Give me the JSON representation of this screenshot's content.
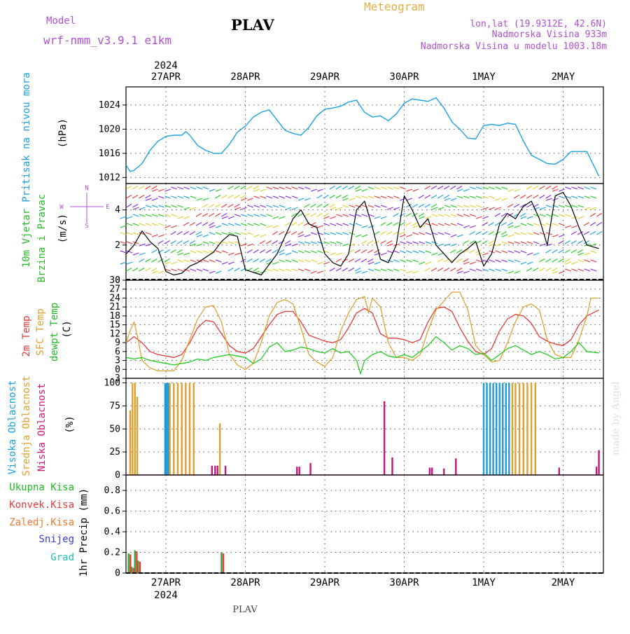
{
  "header": {
    "model_label": "Model",
    "model_value": "wrf-nmm_v3.9.1 e1km",
    "station": "PLAV",
    "product": "Meteogram",
    "coords": "lon,lat (19.9312E, 42.6N)",
    "altitude": "Nadmorska Visina 933m",
    "model_altitude": "Nadmorska Visina u modelu 1003.18m",
    "top_year": "2024",
    "bottom_year": "2024",
    "footer_station": "PLAV",
    "watermark": "made by Angel"
  },
  "colors": {
    "pressure": "#1ba1e2",
    "wind_black": "#000000",
    "t2m": "#e83a3a",
    "sfc": "#e0a030",
    "dew": "#22cc22",
    "high_cloud": "#1e9bd7",
    "mid_cloud": "#e0a030",
    "low_cloud": "#c0187a",
    "total_precip": "#33aa33",
    "conv_precip": "#e83a3a"
  },
  "chart_data": [
    {
      "type": "line",
      "id": "pressure",
      "ylabel": [
        "Pritisak na nivou mora",
        "(hPa)"
      ],
      "ylim": [
        1011,
        1027
      ],
      "yticks": [
        1012,
        1016,
        1020,
        1024
      ],
      "x_day_offset_start": -0.5,
      "x_labels": [
        "27APR",
        "28APR",
        "29APR",
        "30APR",
        "1MAY",
        "2MAY"
      ],
      "grid": true,
      "series": [
        {
          "x": [
            -0.5,
            -0.45,
            -0.4,
            -0.3,
            -0.2,
            -0.1,
            0.0,
            0.1,
            0.2,
            0.2,
            0.25,
            0.3,
            0.4,
            0.5,
            0.6,
            0.7,
            0.8,
            0.9,
            1.0,
            1.1,
            1.2,
            1.3,
            1.4,
            1.5,
            1.6,
            1.7,
            1.8,
            1.9,
            2.0,
            2.1,
            2.2,
            2.3,
            2.4,
            2.5,
            2.6,
            2.7,
            2.8,
            2.9,
            3.0,
            3.1,
            3.2,
            3.3,
            3.4,
            3.5,
            3.6,
            3.7,
            3.8,
            3.9,
            4.0,
            4.1,
            4.2,
            4.3,
            4.4,
            4.5,
            4.6,
            4.7,
            4.8,
            4.9,
            5.0,
            5.1,
            5.2,
            5.3,
            5.45
          ],
          "y": [
            1014,
            1013,
            1013.2,
            1014.3,
            1016.5,
            1018,
            1018.8,
            1019,
            1019,
            1019,
            1019.6,
            1019,
            1017.3,
            1016.5,
            1016,
            1016,
            1017.5,
            1019.5,
            1020.5,
            1022,
            1022.8,
            1023.2,
            1021.5,
            1019.8,
            1019.3,
            1019,
            1020.3,
            1022.2,
            1023.3,
            1023.5,
            1023.8,
            1024.5,
            1024.8,
            1022.8,
            1022,
            1022.2,
            1021.4,
            1022.5,
            1024.3,
            1025,
            1024.8,
            1024.6,
            1025.2,
            1023.5,
            1021.2,
            1020,
            1018.5,
            1018.4,
            1020.6,
            1020.8,
            1020.6,
            1021,
            1020.8,
            1018,
            1015.7,
            1015,
            1014.3,
            1014.2,
            1015,
            1016.3,
            1016.3,
            1016.3,
            1012.2
          ]
        }
      ]
    },
    {
      "type": "line",
      "id": "wind",
      "ylabel": [
        "10m Vjetar",
        "Brzina i Pravac",
        "(m/s)"
      ],
      "ylim": [
        0,
        5.5
      ],
      "yticks": [
        0,
        2,
        4
      ],
      "compass": [
        "N",
        "W",
        "E",
        "S"
      ],
      "grid": true,
      "series": [
        {
          "name": "speed",
          "x": [
            -0.5,
            -0.4,
            -0.3,
            -0.2,
            -0.1,
            0.0,
            0.1,
            0.2,
            0.3,
            0.4,
            0.5,
            0.6,
            0.7,
            0.8,
            0.9,
            1.0,
            1.2,
            1.4,
            1.5,
            1.6,
            1.7,
            1.8,
            1.9,
            2.0,
            2.1,
            2.2,
            2.3,
            2.4,
            2.5,
            2.6,
            2.7,
            2.8,
            2.9,
            3.0,
            3.1,
            3.2,
            3.3,
            3.4,
            3.5,
            3.6,
            3.7,
            3.8,
            3.9,
            4.0,
            4.1,
            4.2,
            4.3,
            4.4,
            4.5,
            4.6,
            4.7,
            4.8,
            4.9,
            5.0,
            5.1,
            5.2,
            5.3,
            5.45
          ],
          "y": [
            1.5,
            2.0,
            2.8,
            2.2,
            1.8,
            0.5,
            0.3,
            0.4,
            0.8,
            1.0,
            1.3,
            1.6,
            2.2,
            2.6,
            2.5,
            0.6,
            0.3,
            1.5,
            2.5,
            3.5,
            4.0,
            3.2,
            3.0,
            1.5,
            1.0,
            0.8,
            1.5,
            4.0,
            4.5,
            3.0,
            1.2,
            1.0,
            2.0,
            4.8,
            4.0,
            3.0,
            3.5,
            2.0,
            1.5,
            1.0,
            1.5,
            1.8,
            2.2,
            0.8,
            1.5,
            3.2,
            3.8,
            3.5,
            4.2,
            4.5,
            3.5,
            2.0,
            4.8,
            5.0,
            4.2,
            3.0,
            2.0,
            1.8
          ]
        }
      ]
    },
    {
      "type": "line",
      "id": "temperature",
      "ylabel": [
        "2m Temp",
        "SFC Temp",
        "dewpt Temp",
        "(C)"
      ],
      "ylim": [
        -3,
        30
      ],
      "yticks": [
        -3,
        0,
        3,
        6,
        9,
        12,
        15,
        18,
        21,
        24,
        27,
        30
      ],
      "grid": true,
      "series": [
        {
          "name": "2m Temp",
          "x": [
            -0.5,
            -0.4,
            -0.3,
            -0.2,
            -0.1,
            0.0,
            0.1,
            0.2,
            0.3,
            0.4,
            0.5,
            0.6,
            0.7,
            0.8,
            0.9,
            1.0,
            1.1,
            1.2,
            1.3,
            1.4,
            1.5,
            1.6,
            1.7,
            1.8,
            1.9,
            2.0,
            2.1,
            2.2,
            2.3,
            2.4,
            2.5,
            2.6,
            2.7,
            2.8,
            2.9,
            3.0,
            3.1,
            3.2,
            3.3,
            3.4,
            3.5,
            3.6,
            3.7,
            3.8,
            3.9,
            4.0,
            4.1,
            4.2,
            4.3,
            4.4,
            4.5,
            4.6,
            4.7,
            4.8,
            4.9,
            5.0,
            5.1,
            5.2,
            5.3,
            5.45
          ],
          "y": [
            9,
            11,
            9,
            6,
            5,
            4.5,
            4,
            5,
            9,
            14,
            16.5,
            16,
            12,
            8,
            6,
            5.5,
            7,
            11,
            15,
            18.5,
            19.5,
            19.5,
            16,
            11.5,
            10.5,
            9.5,
            9,
            10,
            14,
            19,
            20.5,
            19,
            12,
            10.5,
            10.5,
            10,
            9,
            10,
            16,
            20.5,
            21,
            19.5,
            14,
            9.5,
            6,
            5,
            7,
            13,
            17,
            18.5,
            18,
            15.5,
            11,
            9.5,
            8.5,
            8,
            10,
            15,
            18,
            20
          ]
        },
        {
          "name": "SFC Temp",
          "x": [
            -0.5,
            -0.45,
            -0.4,
            -0.35,
            -0.3,
            -0.2,
            -0.1,
            0.0,
            0.1,
            0.2,
            0.3,
            0.4,
            0.5,
            0.6,
            0.7,
            0.8,
            0.9,
            1.0,
            1.1,
            1.2,
            1.3,
            1.4,
            1.5,
            1.6,
            1.7,
            1.8,
            1.9,
            2.0,
            2.1,
            2.2,
            2.3,
            2.4,
            2.5,
            2.55,
            2.6,
            2.7,
            2.8,
            2.9,
            3.0,
            3.1,
            3.2,
            3.3,
            3.4,
            3.5,
            3.6,
            3.7,
            3.8,
            3.9,
            4.0,
            4.1,
            4.2,
            4.3,
            4.4,
            4.5,
            4.6,
            4.7,
            4.8,
            4.9,
            5.0,
            5.1,
            5.2,
            5.3,
            5.35,
            5.45
          ],
          "y": [
            9,
            13,
            16,
            10,
            3,
            0.5,
            -0.5,
            -0.5,
            -0.5,
            3,
            10,
            17,
            21,
            21.5,
            16,
            5,
            1.5,
            0,
            2,
            9,
            18,
            22.5,
            23.5,
            22,
            14,
            5,
            2.5,
            1,
            4,
            13,
            19,
            23.5,
            24.5,
            19,
            24,
            21,
            9,
            4,
            4,
            3,
            5,
            13,
            20,
            23,
            26,
            26,
            20,
            8,
            5,
            2.5,
            3,
            9,
            16,
            21,
            22,
            20,
            10,
            5,
            4,
            4,
            10,
            18,
            24,
            24
          ]
        },
        {
          "name": "dewpt Temp",
          "x": [
            -0.5,
            -0.4,
            -0.3,
            -0.2,
            -0.1,
            0.0,
            0.1,
            0.2,
            0.3,
            0.4,
            0.5,
            0.6,
            0.7,
            0.8,
            0.9,
            1.0,
            1.1,
            1.2,
            1.3,
            1.4,
            1.5,
            1.6,
            1.7,
            1.8,
            1.9,
            2.0,
            2.1,
            2.2,
            2.3,
            2.4,
            2.45,
            2.5,
            2.6,
            2.7,
            2.8,
            2.9,
            3.0,
            3.1,
            3.2,
            3.3,
            3.4,
            3.5,
            3.6,
            3.7,
            3.8,
            3.9,
            4.0,
            4.1,
            4.2,
            4.3,
            4.4,
            4.5,
            4.6,
            4.7,
            4.8,
            4.9,
            5.0,
            5.1,
            5.2,
            5.3,
            5.45
          ],
          "y": [
            4,
            3.5,
            4,
            3,
            2.5,
            2,
            1.5,
            2,
            2.5,
            3.5,
            3,
            4,
            4.5,
            5,
            4.5,
            4,
            2,
            3.5,
            7.5,
            9,
            6,
            6.5,
            7.5,
            7,
            6,
            5.5,
            7,
            5.5,
            6,
            3,
            -1.5,
            3,
            5,
            6,
            4.5,
            4,
            5,
            4,
            6,
            8,
            11,
            9,
            6.5,
            8,
            7,
            5,
            5.5,
            3,
            5,
            7,
            8,
            6.5,
            5,
            6,
            5,
            3.5,
            4,
            6,
            9,
            6,
            5.5
          ]
        }
      ]
    },
    {
      "type": "bar",
      "id": "clouds",
      "ylabel": [
        "Visoka Oblacnost",
        "Srednja Oblacnost",
        "Niska Oblacnost",
        "(%)"
      ],
      "ylim": [
        0,
        105
      ],
      "yticks": [
        0,
        25,
        50,
        75,
        100
      ],
      "grid": true,
      "series": [
        {
          "name": "Visoka Oblacnost",
          "x": [
            -0.01,
            0.01,
            0.03,
            4.0,
            4.04,
            4.08,
            4.12,
            4.16,
            4.2,
            4.24,
            4.28,
            4.32
          ],
          "values": [
            100,
            100,
            100,
            100,
            100,
            100,
            100,
            100,
            100,
            100,
            100,
            100
          ]
        },
        {
          "name": "Srednja Oblacnost",
          "x": [
            -0.45,
            -0.42,
            -0.39,
            -0.36,
            0.05,
            0.1,
            0.15,
            0.2,
            0.25,
            0.3,
            0.35,
            0.68,
            4.36,
            4.4,
            4.45,
            4.5,
            4.55,
            4.6,
            4.65
          ],
          "values": [
            70,
            100,
            100,
            85,
            100,
            100,
            100,
            100,
            100,
            100,
            100,
            56,
            100,
            100,
            100,
            100,
            100,
            100,
            100
          ]
        },
        {
          "name": "Niska Oblacnost",
          "x": [
            0.58,
            0.62,
            0.65,
            0.75,
            1.65,
            1.68,
            1.82,
            2.75,
            2.85,
            3.32,
            3.35,
            3.5,
            3.65,
            4.95,
            5.42,
            5.45
          ],
          "values": [
            10,
            10,
            10,
            10,
            9,
            9,
            13,
            80,
            19,
            8,
            8,
            7,
            18,
            8,
            9,
            27
          ]
        }
      ]
    },
    {
      "type": "bar",
      "id": "precip",
      "ylabel": [
        "1hr Precip (mm)"
      ],
      "legend": [
        "Ukupna Kisa",
        "Konvek.Kisa",
        "Zaledj.Kisa",
        "Snijeg",
        "Grad"
      ],
      "ylim": [
        0,
        0.95
      ],
      "yticks": [
        0,
        0.2,
        0.4,
        0.6,
        0.8
      ],
      "grid": true,
      "series": [
        {
          "name": "Ukupna Kisa",
          "x": [
            -0.47,
            -0.43,
            -0.39,
            -0.35,
            0.7
          ],
          "values": [
            0.19,
            0.06,
            0.22,
            0.12,
            0.2
          ]
        },
        {
          "name": "Konvek.Kisa",
          "x": [
            -0.46,
            -0.42,
            -0.38,
            -0.34,
            0.71
          ],
          "values": [
            0.18,
            0.05,
            0.21,
            0.11,
            0.19
          ]
        }
      ]
    }
  ]
}
